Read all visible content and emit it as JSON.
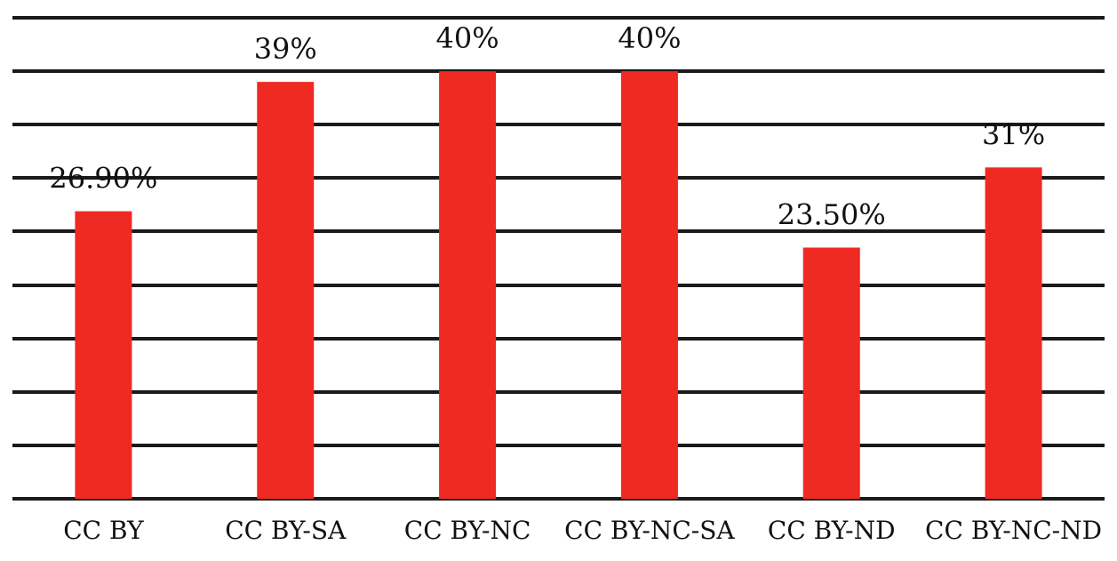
{
  "chart_data": {
    "type": "bar",
    "title": "",
    "xlabel": "",
    "ylabel": "",
    "categories": [
      "CC BY",
      "CC BY-SA",
      "CC BY-NC",
      "CC BY-NC-SA",
      "CC BY-ND",
      "CC BY-NC-ND"
    ],
    "values": [
      26.9,
      39,
      40,
      40,
      23.5,
      31
    ],
    "data_labels": [
      "26.90%",
      "39%",
      "40%",
      "40%",
      "23.50%",
      "31%"
    ],
    "ylim": [
      0,
      45
    ],
    "grid": true,
    "legend": "none",
    "colors": {
      "bar": "#ee2a22",
      "grid": "#1a1a1a",
      "text": "#111111"
    }
  }
}
